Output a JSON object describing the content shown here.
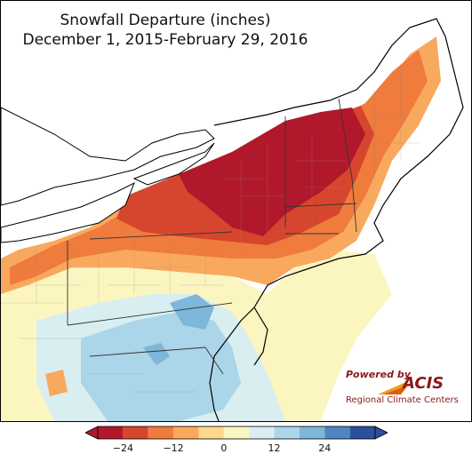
{
  "title": {
    "line1": "Snowfall Departure (inches)",
    "line2": "December 1, 2015-February 29, 2016"
  },
  "logo": {
    "powered_by": "Powered by",
    "name": "ACIS",
    "subtitle": "Regional Climate Centers"
  },
  "legend": {
    "colors": [
      "#b2182b",
      "#d6462e",
      "#ef7b3d",
      "#f9a95e",
      "#fdd88a",
      "#fbf6c0",
      "#d9eef1",
      "#abd5e8",
      "#7eb7d9",
      "#4f86c1",
      "#2c4f9e"
    ],
    "ticks": [
      {
        "label": "−24",
        "value": -24
      },
      {
        "label": "−12",
        "value": -12
      },
      {
        "label": "0",
        "value": 0
      },
      {
        "label": "12",
        "value": 12
      },
      {
        "label": "24",
        "value": 24
      }
    ]
  }
}
